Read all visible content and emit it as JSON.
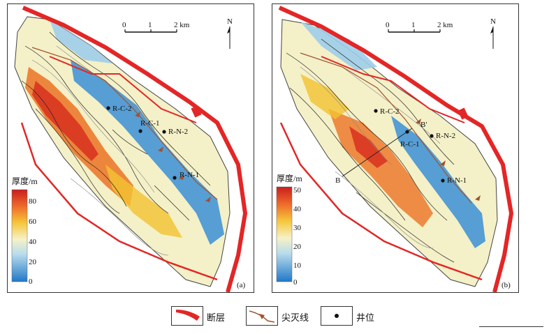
{
  "panels": [
    {
      "id": "a",
      "tag": "(a)",
      "scale": {
        "ticks": [
          "0",
          "1",
          "2 km"
        ]
      },
      "north": "N",
      "colorbar": {
        "title": "厚度/m",
        "ticks": [
          "80",
          "60",
          "40",
          "20",
          "0"
        ]
      },
      "wells": [
        "R-C-2",
        "R-C-1",
        "R-N-2",
        "R-N-1"
      ]
    },
    {
      "id": "b",
      "tag": "(b)",
      "scale": {
        "ticks": [
          "0",
          "1",
          "2 km"
        ]
      },
      "north": "N",
      "colorbar": {
        "title": "厚度/m",
        "ticks": [
          "50",
          "40",
          "30",
          "20",
          "10",
          "0"
        ]
      },
      "wells": [
        "R-C-2",
        "R-C-1",
        "R-N-2",
        "R-N-1"
      ],
      "section": {
        "start": "B",
        "end": "B'"
      }
    }
  ],
  "legend": {
    "fault": "断层",
    "pinchout": "尖灭线",
    "well": "井位"
  },
  "colors": {
    "fault": "#e32626",
    "pinchout": "#a0522d",
    "thick": "#d7301f",
    "mid": "#f3c331",
    "thin": "#2c7fd0"
  }
}
